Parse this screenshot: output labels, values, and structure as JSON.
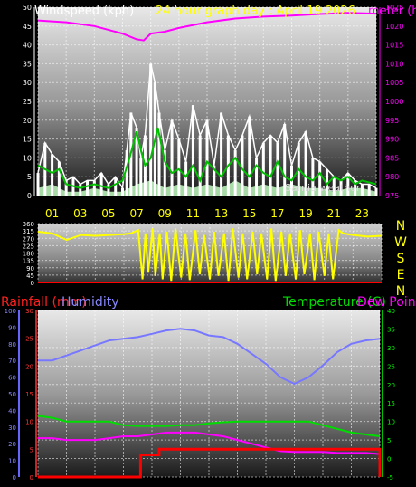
{
  "page": {
    "title": "24 hour graph day : April 19 2026",
    "background": "#000000"
  },
  "colors": {
    "wind_speed": "#ffffff",
    "wind_gust_avg": "#00c000",
    "wind_low": "#b8f0b8",
    "barometer": "#ff00ff",
    "direction": "#ffff00",
    "rain": "#ff0000",
    "humidity": "#7777ff",
    "temperature": "#00dd00",
    "dew_point": "#ff00ff",
    "axis_left": "#ffffff",
    "axis_right": "#ff00ff",
    "compass": "#ffff00",
    "rain_axis": "#ff3333",
    "hum_axis": "#8888ff",
    "temp_axis": "#00ff00"
  },
  "chart_data": [
    {
      "id": "wind",
      "type": "line",
      "title": "24 hour graph day : April 19 2026",
      "left_axis_label": "Windspeed (kph)",
      "right_axis_label": "Barometer (hPa)",
      "right_axis_label_visible": "meter (h",
      "overlay_text": "Sarnia weather",
      "ylim_left": [
        0,
        50
      ],
      "left_ticks": [
        "0",
        "5",
        "10",
        "15",
        "20",
        "25",
        "30",
        "35",
        "40",
        "45",
        "50"
      ],
      "ylim_right": [
        975,
        1025
      ],
      "right_ticks": [
        "975",
        "980",
        "985",
        "990",
        "995",
        "1000",
        "1005",
        "1010",
        "1015",
        "1020",
        "1025"
      ],
      "x_ticks": [
        "01",
        "03",
        "05",
        "07",
        "09",
        "11",
        "13",
        "15",
        "17",
        "19",
        "21",
        "23"
      ],
      "barometer": [
        [
          0,
          1021.5
        ],
        [
          2,
          1021
        ],
        [
          4,
          1020
        ],
        [
          6,
          1018
        ],
        [
          7,
          1016.5
        ],
        [
          7.5,
          1016.2
        ],
        [
          8,
          1018
        ],
        [
          9,
          1018.5
        ],
        [
          10,
          1019.5
        ],
        [
          12,
          1021
        ],
        [
          14,
          1022
        ],
        [
          16,
          1022.5
        ],
        [
          18,
          1022.8
        ],
        [
          20,
          1023.2
        ],
        [
          22,
          1023.5
        ],
        [
          24,
          1023.3
        ]
      ],
      "wind_speed": [
        [
          0,
          6
        ],
        [
          0.5,
          14
        ],
        [
          1,
          11
        ],
        [
          1.5,
          9
        ],
        [
          2,
          4
        ],
        [
          2.5,
          5
        ],
        [
          3,
          3
        ],
        [
          3.5,
          4
        ],
        [
          4,
          4
        ],
        [
          4.5,
          6
        ],
        [
          5,
          3
        ],
        [
          5.5,
          5
        ],
        [
          6,
          2
        ],
        [
          6.3,
          12
        ],
        [
          6.6,
          22
        ],
        [
          7,
          18
        ],
        [
          7.3,
          10
        ],
        [
          7.6,
          16
        ],
        [
          8,
          35
        ],
        [
          8.3,
          30
        ],
        [
          8.6,
          22
        ],
        [
          9,
          12
        ],
        [
          9.5,
          20
        ],
        [
          10,
          15
        ],
        [
          10.5,
          9
        ],
        [
          11,
          24
        ],
        [
          11.5,
          16
        ],
        [
          12,
          20
        ],
        [
          12.5,
          8
        ],
        [
          13,
          22
        ],
        [
          13.5,
          16
        ],
        [
          14,
          12
        ],
        [
          14.5,
          16
        ],
        [
          15,
          21
        ],
        [
          15.5,
          10
        ],
        [
          16,
          14
        ],
        [
          16.5,
          16
        ],
        [
          17,
          14
        ],
        [
          17.5,
          19
        ],
        [
          18,
          8
        ],
        [
          18.5,
          14
        ],
        [
          19,
          17
        ],
        [
          19.5,
          10
        ],
        [
          20,
          9
        ],
        [
          20.5,
          7
        ],
        [
          21,
          5
        ],
        [
          21.5,
          4
        ],
        [
          22,
          6
        ],
        [
          22.5,
          4
        ],
        [
          23,
          3
        ],
        [
          23.5,
          3
        ],
        [
          24,
          2
        ]
      ],
      "wind_avg": [
        [
          0,
          8
        ],
        [
          0.5,
          7
        ],
        [
          1,
          6
        ],
        [
          1.5,
          7
        ],
        [
          2,
          3
        ],
        [
          3,
          2
        ],
        [
          4,
          3
        ],
        [
          5,
          2
        ],
        [
          6,
          4
        ],
        [
          6.5,
          10
        ],
        [
          7,
          17
        ],
        [
          7.3,
          12
        ],
        [
          7.6,
          8
        ],
        [
          8,
          10
        ],
        [
          8.5,
          18
        ],
        [
          9,
          9
        ],
        [
          9.5,
          6
        ],
        [
          10,
          7
        ],
        [
          10.5,
          5
        ],
        [
          11,
          8
        ],
        [
          11.5,
          4
        ],
        [
          12,
          9
        ],
        [
          12.5,
          7
        ],
        [
          13,
          5
        ],
        [
          13.5,
          8
        ],
        [
          14,
          10
        ],
        [
          14.5,
          7
        ],
        [
          15,
          5
        ],
        [
          15.5,
          8
        ],
        [
          16,
          6
        ],
        [
          16.5,
          5
        ],
        [
          17,
          9
        ],
        [
          17.5,
          5
        ],
        [
          18,
          4
        ],
        [
          18.5,
          7
        ],
        [
          19,
          5
        ],
        [
          19.5,
          4
        ],
        [
          20,
          6
        ],
        [
          20.5,
          3
        ],
        [
          21,
          5
        ],
        [
          21.5,
          4
        ],
        [
          22,
          5
        ],
        [
          22.5,
          3
        ],
        [
          23,
          4
        ],
        [
          24,
          3
        ]
      ],
      "wind_low": [
        [
          0,
          2
        ],
        [
          1,
          3
        ],
        [
          2,
          1
        ],
        [
          3,
          1
        ],
        [
          4,
          2
        ],
        [
          5,
          1
        ],
        [
          6,
          1
        ],
        [
          7,
          3
        ],
        [
          8,
          4
        ],
        [
          9,
          2
        ],
        [
          10,
          3
        ],
        [
          11,
          2
        ],
        [
          12,
          3
        ],
        [
          13,
          2
        ],
        [
          14,
          4
        ],
        [
          15,
          2
        ],
        [
          16,
          3
        ],
        [
          17,
          2
        ],
        [
          18,
          3
        ],
        [
          19,
          2
        ],
        [
          20,
          2
        ],
        [
          21,
          1
        ],
        [
          22,
          2
        ],
        [
          23,
          2
        ],
        [
          24,
          1
        ]
      ]
    },
    {
      "id": "direction",
      "type": "line",
      "ylim": [
        0,
        360
      ],
      "ticks": [
        "0",
        "90",
        "180",
        "270",
        "360"
      ],
      "tick_values": [
        0,
        45,
        90,
        135,
        180,
        225,
        270,
        315,
        360
      ],
      "tick_labels": [
        "0",
        "45",
        "90",
        "135",
        "180",
        "225",
        "270",
        "315",
        "360"
      ],
      "compass": [
        "N",
        "W",
        "S",
        "E",
        "N"
      ],
      "points": [
        [
          0,
          310
        ],
        [
          1,
          300
        ],
        [
          2,
          260
        ],
        [
          3,
          290
        ],
        [
          4,
          285
        ],
        [
          5,
          290
        ],
        [
          6,
          295
        ],
        [
          6.5,
          300
        ],
        [
          7,
          320
        ],
        [
          7.3,
          20
        ],
        [
          7.5,
          300
        ],
        [
          7.7,
          60
        ],
        [
          8,
          330
        ],
        [
          8.2,
          40
        ],
        [
          8.5,
          300
        ],
        [
          8.7,
          20
        ],
        [
          9,
          310
        ],
        [
          9.3,
          10
        ],
        [
          9.6,
          330
        ],
        [
          10,
          30
        ],
        [
          10.3,
          300
        ],
        [
          10.6,
          15
        ],
        [
          11,
          320
        ],
        [
          11.3,
          50
        ],
        [
          11.6,
          290
        ],
        [
          12,
          20
        ],
        [
          12.3,
          310
        ],
        [
          12.6,
          40
        ],
        [
          13,
          300
        ],
        [
          13.3,
          10
        ],
        [
          13.6,
          330
        ],
        [
          14,
          30
        ],
        [
          14.3,
          300
        ],
        [
          14.6,
          20
        ],
        [
          15,
          310
        ],
        [
          15.3,
          50
        ],
        [
          15.6,
          300
        ],
        [
          16,
          20
        ],
        [
          16.3,
          330
        ],
        [
          16.6,
          10
        ],
        [
          17,
          310
        ],
        [
          17.3,
          40
        ],
        [
          17.6,
          300
        ],
        [
          18,
          20
        ],
        [
          18.3,
          320
        ],
        [
          18.6,
          50
        ],
        [
          19,
          300
        ],
        [
          19.3,
          15
        ],
        [
          19.6,
          310
        ],
        [
          20,
          40
        ],
        [
          20.3,
          300
        ],
        [
          20.6,
          20
        ],
        [
          21,
          320
        ],
        [
          21.3,
          300
        ],
        [
          22,
          290
        ],
        [
          23,
          280
        ],
        [
          24,
          285
        ]
      ]
    },
    {
      "id": "climate",
      "type": "line",
      "labels": {
        "rainfall": "Rainfall (mm)",
        "humidity": "Humidity",
        "temperature": "Temperature (C)",
        "dew_point": "Dew Point"
      },
      "rain_ticks": [
        "0",
        "5",
        "10",
        "15",
        "20",
        "25",
        "30"
      ],
      "hum_ticks": [
        "0",
        "10",
        "20",
        "30",
        "40",
        "50",
        "60",
        "70",
        "80",
        "90",
        "100"
      ],
      "temp_ticks": [
        "-5",
        "0",
        "5",
        "10",
        "15",
        "20",
        "25",
        "30",
        "35",
        "40"
      ],
      "ylim_rain": [
        0,
        30
      ],
      "ylim_hum": [
        0,
        100
      ],
      "ylim_temp": [
        -5,
        40
      ],
      "humidity": [
        [
          0,
          70
        ],
        [
          1,
          70
        ],
        [
          2,
          73
        ],
        [
          3,
          76
        ],
        [
          4,
          79
        ],
        [
          5,
          82
        ],
        [
          6,
          83
        ],
        [
          7,
          84
        ],
        [
          8,
          86
        ],
        [
          9,
          88
        ],
        [
          10,
          89
        ],
        [
          11,
          88
        ],
        [
          12,
          85
        ],
        [
          13,
          84
        ],
        [
          14,
          80
        ],
        [
          15,
          74
        ],
        [
          16,
          68
        ],
        [
          16.5,
          64
        ],
        [
          17,
          60
        ],
        [
          18,
          56
        ],
        [
          19,
          60
        ],
        [
          20,
          67
        ],
        [
          21,
          75
        ],
        [
          22,
          80
        ],
        [
          23,
          82
        ],
        [
          24,
          83
        ]
      ],
      "temperature": [
        [
          0,
          11.5
        ],
        [
          1,
          11
        ],
        [
          2,
          10
        ],
        [
          3,
          10
        ],
        [
          4,
          10
        ],
        [
          5,
          10
        ],
        [
          6,
          9
        ],
        [
          7,
          8.8
        ],
        [
          8,
          8.8
        ],
        [
          9,
          8.8
        ],
        [
          10,
          9
        ],
        [
          11,
          9
        ],
        [
          12,
          9.5
        ],
        [
          13,
          9.8
        ],
        [
          14,
          10
        ],
        [
          15,
          10
        ],
        [
          16,
          10
        ],
        [
          17,
          10
        ],
        [
          18,
          10
        ],
        [
          19,
          10
        ],
        [
          20,
          9
        ],
        [
          21,
          8
        ],
        [
          22,
          7
        ],
        [
          23,
          6.5
        ],
        [
          24,
          6
        ]
      ],
      "dew_point": [
        [
          0,
          5.5
        ],
        [
          1,
          5.5
        ],
        [
          2,
          5
        ],
        [
          3,
          5
        ],
        [
          4,
          5
        ],
        [
          5,
          5.5
        ],
        [
          6,
          6
        ],
        [
          7,
          6
        ],
        [
          8,
          6.5
        ],
        [
          9,
          7
        ],
        [
          10,
          7
        ],
        [
          11,
          7
        ],
        [
          12,
          6.5
        ],
        [
          13,
          6
        ],
        [
          14,
          5
        ],
        [
          15,
          4
        ],
        [
          16,
          3
        ],
        [
          17,
          2
        ],
        [
          18,
          1.8
        ],
        [
          19,
          1.8
        ],
        [
          20,
          1.8
        ],
        [
          21,
          1.5
        ],
        [
          22,
          1.5
        ],
        [
          23,
          1.5
        ],
        [
          24,
          1.2
        ]
      ],
      "rain": [
        [
          0,
          0
        ],
        [
          7.2,
          0
        ],
        [
          7.2,
          4
        ],
        [
          8.5,
          4
        ],
        [
          8.5,
          5
        ],
        [
          24,
          5
        ],
        [
          24,
          0
        ]
      ]
    }
  ]
}
